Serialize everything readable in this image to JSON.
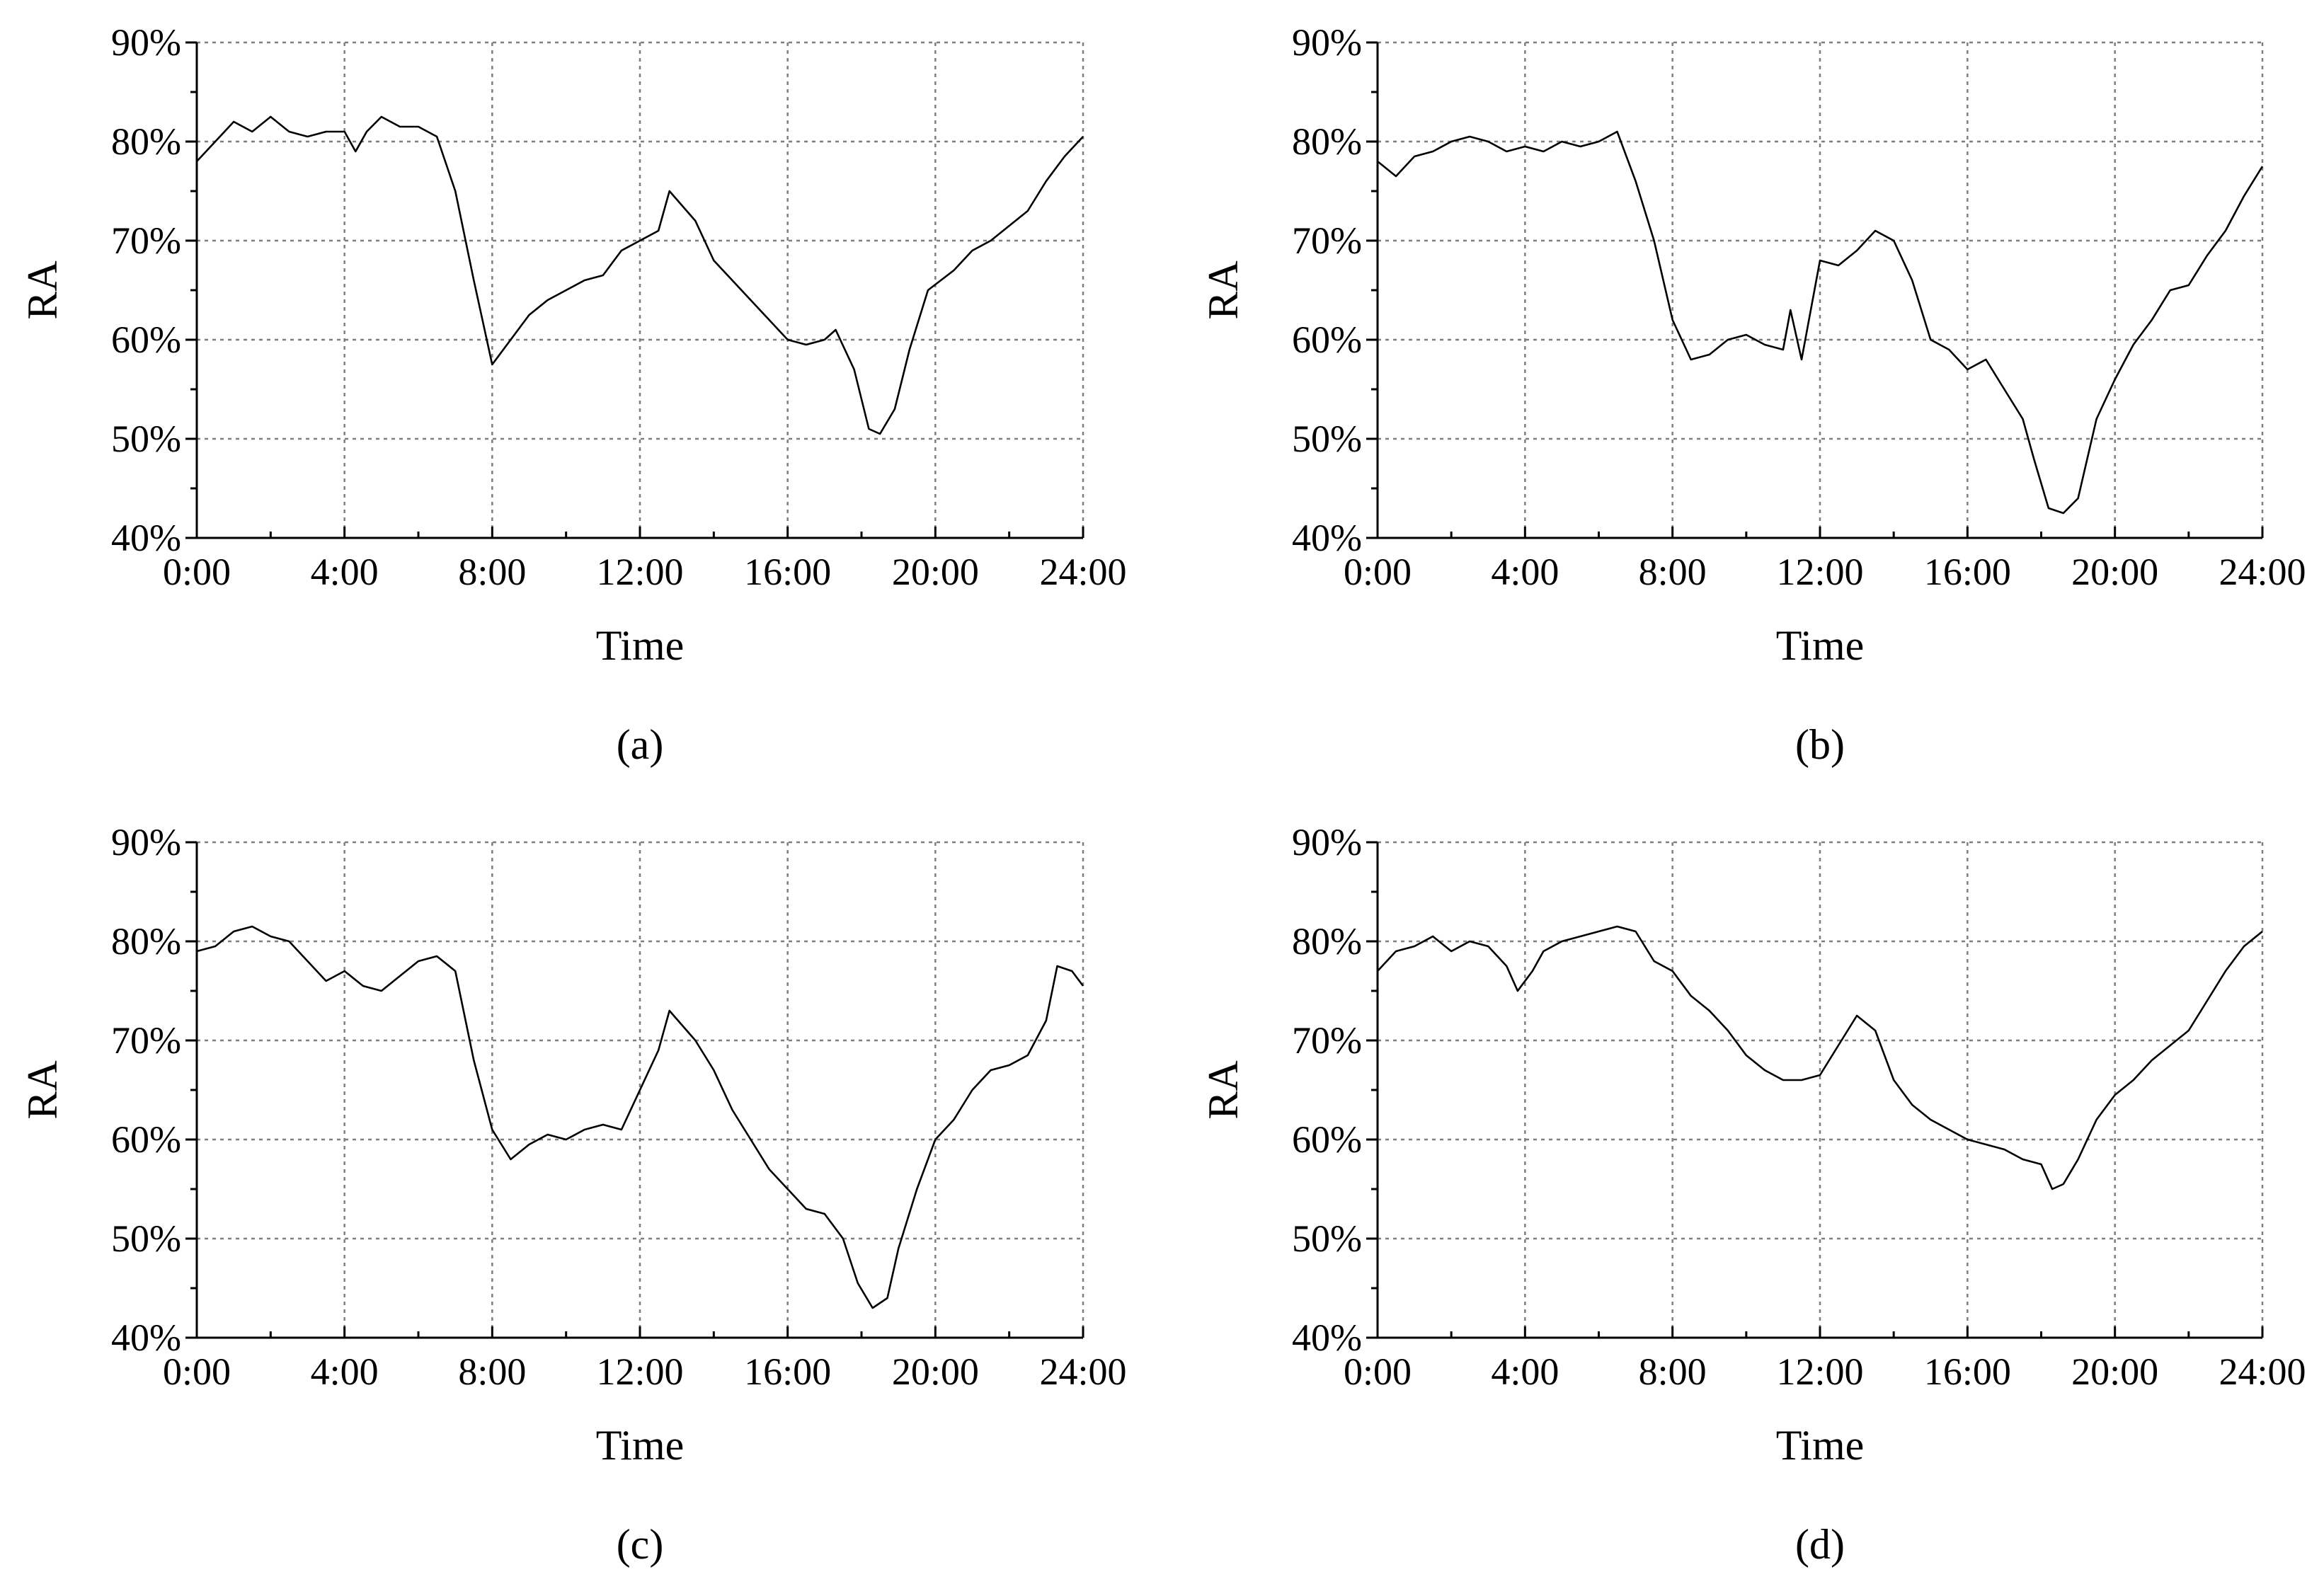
{
  "chart_data": [
    {
      "type": "line",
      "caption": "(a)",
      "xlabel": "Time",
      "ylabel": "RA",
      "x_ticks": [
        "0:00",
        "4:00",
        "8:00",
        "12:00",
        "16:00",
        "20:00",
        "24:00"
      ],
      "y_ticks": [
        "40%",
        "50%",
        "60%",
        "70%",
        "80%",
        "90%"
      ],
      "xlim": [
        0,
        24
      ],
      "ylim": [
        40,
        90
      ],
      "grid": true,
      "series": [
        {
          "x": [
            0,
            0.5,
            1,
            1.5,
            2,
            2.5,
            3,
            3.5,
            4,
            4.3,
            4.6,
            5,
            5.5,
            6,
            6.5,
            7,
            7.5,
            8,
            8.5,
            9,
            9.5,
            10,
            10.5,
            11,
            11.5,
            12,
            12.5,
            12.8,
            13.5,
            14,
            14.5,
            15,
            15.5,
            16,
            16.5,
            17,
            17.3,
            17.8,
            18.2,
            18.5,
            18.9,
            19.3,
            19.8,
            20.5,
            21,
            21.5,
            22,
            22.5,
            23,
            23.5,
            24
          ],
          "y": [
            78,
            80,
            82,
            81,
            82.5,
            81,
            80.5,
            81,
            81,
            79,
            81,
            82.5,
            81.5,
            81.5,
            80.5,
            75,
            66,
            57.5,
            60,
            62.5,
            64,
            65,
            66,
            66.5,
            69,
            70,
            71,
            75,
            72,
            68,
            66,
            64,
            62,
            60,
            59.5,
            60,
            61,
            57,
            51,
            50.5,
            53,
            59,
            65,
            67,
            69,
            70,
            71.5,
            73,
            76,
            78.5,
            80.5
          ]
        }
      ]
    },
    {
      "type": "line",
      "caption": "(b)",
      "xlabel": "Time",
      "ylabel": "RA",
      "x_ticks": [
        "0:00",
        "4:00",
        "8:00",
        "12:00",
        "16:00",
        "20:00",
        "24:00"
      ],
      "y_ticks": [
        "40%",
        "50%",
        "60%",
        "70%",
        "80%",
        "90%"
      ],
      "xlim": [
        0,
        24
      ],
      "ylim": [
        40,
        90
      ],
      "grid": true,
      "series": [
        {
          "x": [
            0,
            0.5,
            1,
            1.5,
            2,
            2.5,
            3,
            3.5,
            4,
            4.5,
            5,
            5.5,
            6,
            6.5,
            7,
            7.5,
            8,
            8.5,
            9,
            9.5,
            10,
            10.5,
            11,
            11.2,
            11.5,
            12,
            12.5,
            13,
            13.5,
            14,
            14.5,
            15,
            15.5,
            16,
            16.5,
            17,
            17.5,
            17.8,
            18.2,
            18.6,
            19,
            19.5,
            20,
            20.5,
            21,
            21.5,
            22,
            22.5,
            23,
            23.5,
            24
          ],
          "y": [
            78,
            76.5,
            78.5,
            79,
            80,
            80.5,
            80,
            79,
            79.5,
            79,
            80,
            79.5,
            80,
            81,
            76,
            70,
            62,
            58,
            58.5,
            60,
            60.5,
            59.5,
            59,
            63,
            58,
            68,
            67.5,
            69,
            71,
            70,
            66,
            60,
            59,
            57,
            58,
            55,
            52,
            48,
            43,
            42.5,
            44,
            52,
            56,
            59.5,
            62,
            65,
            65.5,
            68.5,
            71,
            74.5,
            77.5
          ]
        }
      ]
    },
    {
      "type": "line",
      "caption": "(c)",
      "xlabel": "Time",
      "ylabel": "RA",
      "x_ticks": [
        "0:00",
        "4:00",
        "8:00",
        "12:00",
        "16:00",
        "20:00",
        "24:00"
      ],
      "y_ticks": [
        "40%",
        "50%",
        "60%",
        "70%",
        "80%",
        "90%"
      ],
      "xlim": [
        0,
        24
      ],
      "ylim": [
        40,
        90
      ],
      "grid": true,
      "series": [
        {
          "x": [
            0,
            0.5,
            1,
            1.5,
            2,
            2.5,
            3,
            3.5,
            4,
            4.5,
            5,
            5.5,
            6,
            6.5,
            7,
            7.5,
            8,
            8.5,
            9,
            9.5,
            10,
            10.5,
            11,
            11.5,
            12,
            12.5,
            12.8,
            13.5,
            14,
            14.5,
            15,
            15.5,
            16,
            16.5,
            17,
            17.5,
            17.9,
            18.3,
            18.7,
            19,
            19.5,
            20,
            20.5,
            21,
            21.5,
            22,
            22.5,
            23,
            23.3,
            23.7,
            24
          ],
          "y": [
            79,
            79.5,
            81,
            81.5,
            80.5,
            80,
            78,
            76,
            77,
            75.5,
            75,
            76.5,
            78,
            78.5,
            77,
            68,
            61,
            58,
            59.5,
            60.5,
            60,
            61,
            61.5,
            61,
            65,
            69,
            73,
            70,
            67,
            63,
            60,
            57,
            55,
            53,
            52.5,
            50,
            45.5,
            43,
            44,
            49,
            55,
            60,
            62,
            65,
            67,
            67.5,
            68.5,
            72,
            77.5,
            77,
            75.5
          ]
        }
      ]
    },
    {
      "type": "line",
      "caption": "(d)",
      "xlabel": "Time",
      "ylabel": "RA",
      "x_ticks": [
        "0:00",
        "4:00",
        "8:00",
        "12:00",
        "16:00",
        "20:00",
        "24:00"
      ],
      "y_ticks": [
        "40%",
        "50%",
        "60%",
        "70%",
        "80%",
        "90%"
      ],
      "xlim": [
        0,
        24
      ],
      "ylim": [
        40,
        90
      ],
      "grid": true,
      "series": [
        {
          "x": [
            0,
            0.5,
            1,
            1.5,
            2,
            2.5,
            3,
            3.5,
            3.8,
            4.2,
            4.5,
            5,
            5.5,
            6,
            6.5,
            7,
            7.5,
            8,
            8.5,
            9,
            9.5,
            10,
            10.5,
            11,
            11.5,
            12,
            12.5,
            13,
            13.5,
            14,
            14.5,
            15,
            15.5,
            16,
            16.5,
            17,
            17.5,
            18,
            18.3,
            18.6,
            19,
            19.5,
            20,
            20.5,
            21,
            21.5,
            22,
            22.5,
            23,
            23.5,
            24
          ],
          "y": [
            77,
            79,
            79.5,
            80.5,
            79,
            80,
            79.5,
            77.5,
            75,
            77,
            79,
            80,
            80.5,
            81,
            81.5,
            81,
            78,
            77,
            74.5,
            73,
            71,
            68.5,
            67,
            66,
            66,
            66.5,
            69.5,
            72.5,
            71,
            66,
            63.5,
            62,
            61,
            60,
            59.5,
            59,
            58,
            57.5,
            55,
            55.5,
            58,
            62,
            64.5,
            66,
            68,
            69.5,
            71,
            74,
            77,
            79.5,
            81
          ]
        }
      ]
    }
  ]
}
